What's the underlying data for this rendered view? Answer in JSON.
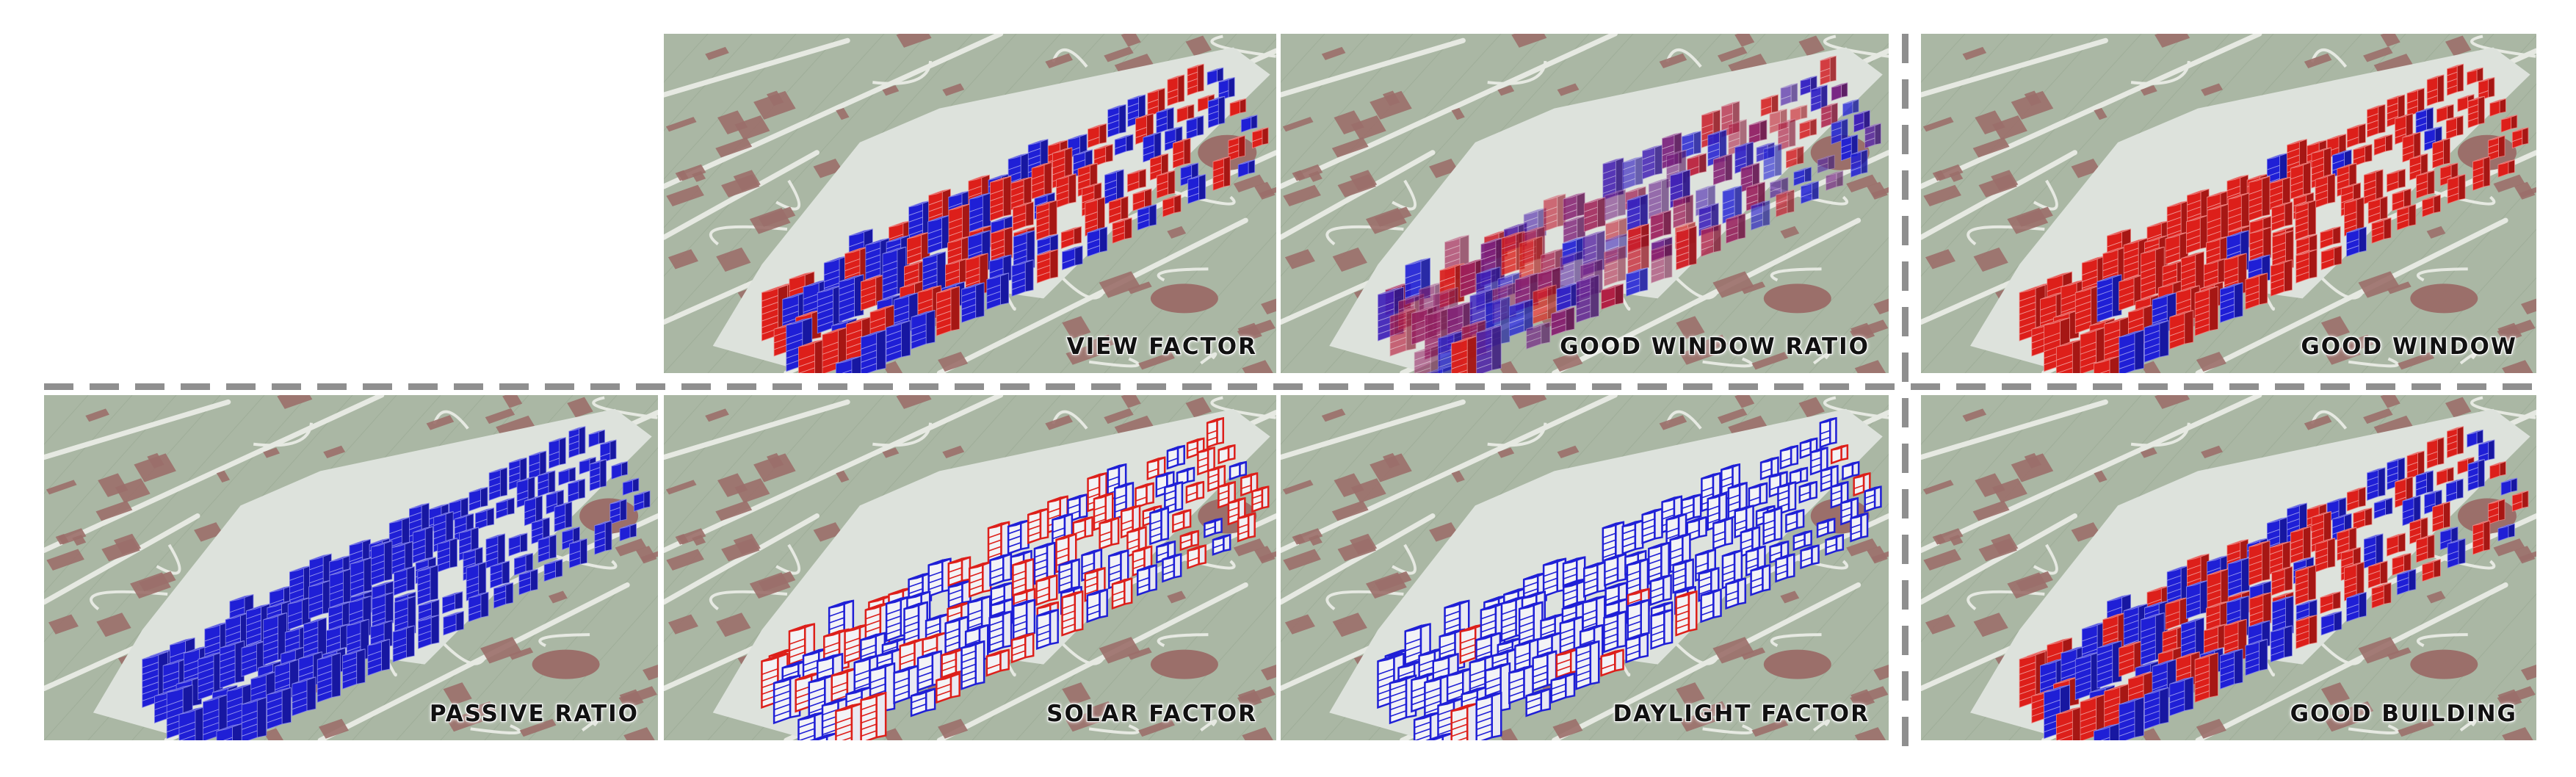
{
  "colors": {
    "map_ground": "#aab7a4",
    "map_roads": "#e6e9e2",
    "map_buildings": "#9b6f6a",
    "site_plate": "#dde2dc",
    "good": "#1f1fd6",
    "bad": "#dd1f1a",
    "divider": "#8f8f8f"
  },
  "panels": [
    {
      "id": "view-factor",
      "label": "VIEW FACTOR",
      "mode": "mixed",
      "good_share": 0.5,
      "gradient": false
    },
    {
      "id": "good-window-ratio",
      "label": "GOOD WINDOW RATIO",
      "mode": "gradient",
      "good_share": 0.45,
      "gradient": true
    },
    {
      "id": "good-window",
      "label": "GOOD WINDOW",
      "mode": "mostly-bad",
      "good_share": 0.08,
      "gradient": false
    },
    {
      "id": "passive-ratio",
      "label": "PASSIVE RATIO",
      "mode": "all-good",
      "good_share": 1.0,
      "gradient": false
    },
    {
      "id": "solar-factor",
      "label": "SOLAR FACTOR",
      "mode": "outline-mixed",
      "good_share": 0.6,
      "gradient": true
    },
    {
      "id": "daylight-factor",
      "label": "DAYLIGHT FACTOR",
      "mode": "outline-good",
      "good_share": 0.9,
      "gradient": true
    },
    {
      "id": "good-building",
      "label": "GOOD BUILDING",
      "mode": "mixed",
      "good_share": 0.5,
      "gradient": false
    }
  ]
}
